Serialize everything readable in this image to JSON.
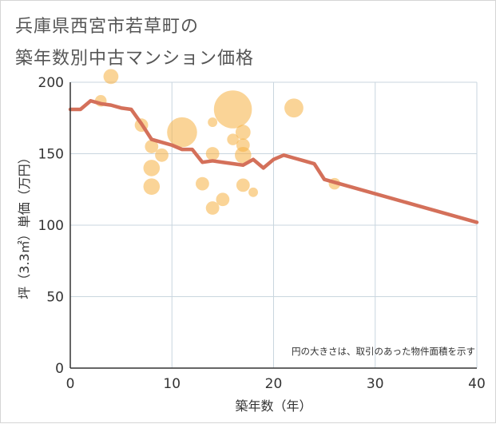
{
  "chart_data": {
    "type": "scatter",
    "title_line1": "兵庫県西宮市若草町の",
    "title_line2": "築年数別中古マンション価格",
    "xlabel": "築年数（年）",
    "ylabel": "坪（3.3㎡）単価（万円）",
    "xlim": [
      0,
      40
    ],
    "ylim": [
      0,
      200
    ],
    "x_ticks": [
      0,
      10,
      20,
      30,
      40
    ],
    "y_ticks": [
      0,
      50,
      100,
      150,
      200
    ],
    "grid": true,
    "note": "円の大きさは、取引のあった物件面積を示す",
    "bubble_color": "#f5b041",
    "line_color": "#d4705a",
    "bubbles": [
      {
        "x": 3,
        "y": 187,
        "size": 3
      },
      {
        "x": 4,
        "y": 204,
        "size": 5
      },
      {
        "x": 7,
        "y": 170,
        "size": 4
      },
      {
        "x": 8,
        "y": 155,
        "size": 4
      },
      {
        "x": 8,
        "y": 140,
        "size": 6
      },
      {
        "x": 8,
        "y": 127,
        "size": 6
      },
      {
        "x": 9,
        "y": 149,
        "size": 4
      },
      {
        "x": 11,
        "y": 165,
        "size": 20
      },
      {
        "x": 13,
        "y": 129,
        "size": 4
      },
      {
        "x": 14,
        "y": 172,
        "size": 2
      },
      {
        "x": 14,
        "y": 150,
        "size": 4
      },
      {
        "x": 14,
        "y": 112,
        "size": 4
      },
      {
        "x": 15,
        "y": 118,
        "size": 4
      },
      {
        "x": 16,
        "y": 181,
        "size": 32
      },
      {
        "x": 16,
        "y": 160,
        "size": 3
      },
      {
        "x": 17,
        "y": 165,
        "size": 5
      },
      {
        "x": 17,
        "y": 156,
        "size": 4
      },
      {
        "x": 17,
        "y": 149,
        "size": 6
      },
      {
        "x": 17,
        "y": 128,
        "size": 4
      },
      {
        "x": 18,
        "y": 123,
        "size": 2
      },
      {
        "x": 22,
        "y": 182,
        "size": 8
      },
      {
        "x": 26,
        "y": 129,
        "size": 3
      }
    ],
    "trend": [
      {
        "x": 0,
        "y": 181
      },
      {
        "x": 1,
        "y": 181
      },
      {
        "x": 2,
        "y": 187
      },
      {
        "x": 3,
        "y": 185
      },
      {
        "x": 4,
        "y": 184
      },
      {
        "x": 5,
        "y": 182
      },
      {
        "x": 6,
        "y": 181
      },
      {
        "x": 7,
        "y": 171
      },
      {
        "x": 8,
        "y": 160
      },
      {
        "x": 9,
        "y": 158
      },
      {
        "x": 10,
        "y": 156
      },
      {
        "x": 11,
        "y": 153
      },
      {
        "x": 12,
        "y": 153
      },
      {
        "x": 13,
        "y": 144
      },
      {
        "x": 14,
        "y": 145
      },
      {
        "x": 15,
        "y": 144
      },
      {
        "x": 16,
        "y": 143
      },
      {
        "x": 17,
        "y": 142
      },
      {
        "x": 18,
        "y": 146
      },
      {
        "x": 19,
        "y": 140
      },
      {
        "x": 20,
        "y": 146
      },
      {
        "x": 21,
        "y": 149
      },
      {
        "x": 22,
        "y": 147
      },
      {
        "x": 23,
        "y": 145
      },
      {
        "x": 24,
        "y": 143
      },
      {
        "x": 25,
        "y": 132
      },
      {
        "x": 26,
        "y": 130
      },
      {
        "x": 40,
        "y": 102
      }
    ]
  }
}
